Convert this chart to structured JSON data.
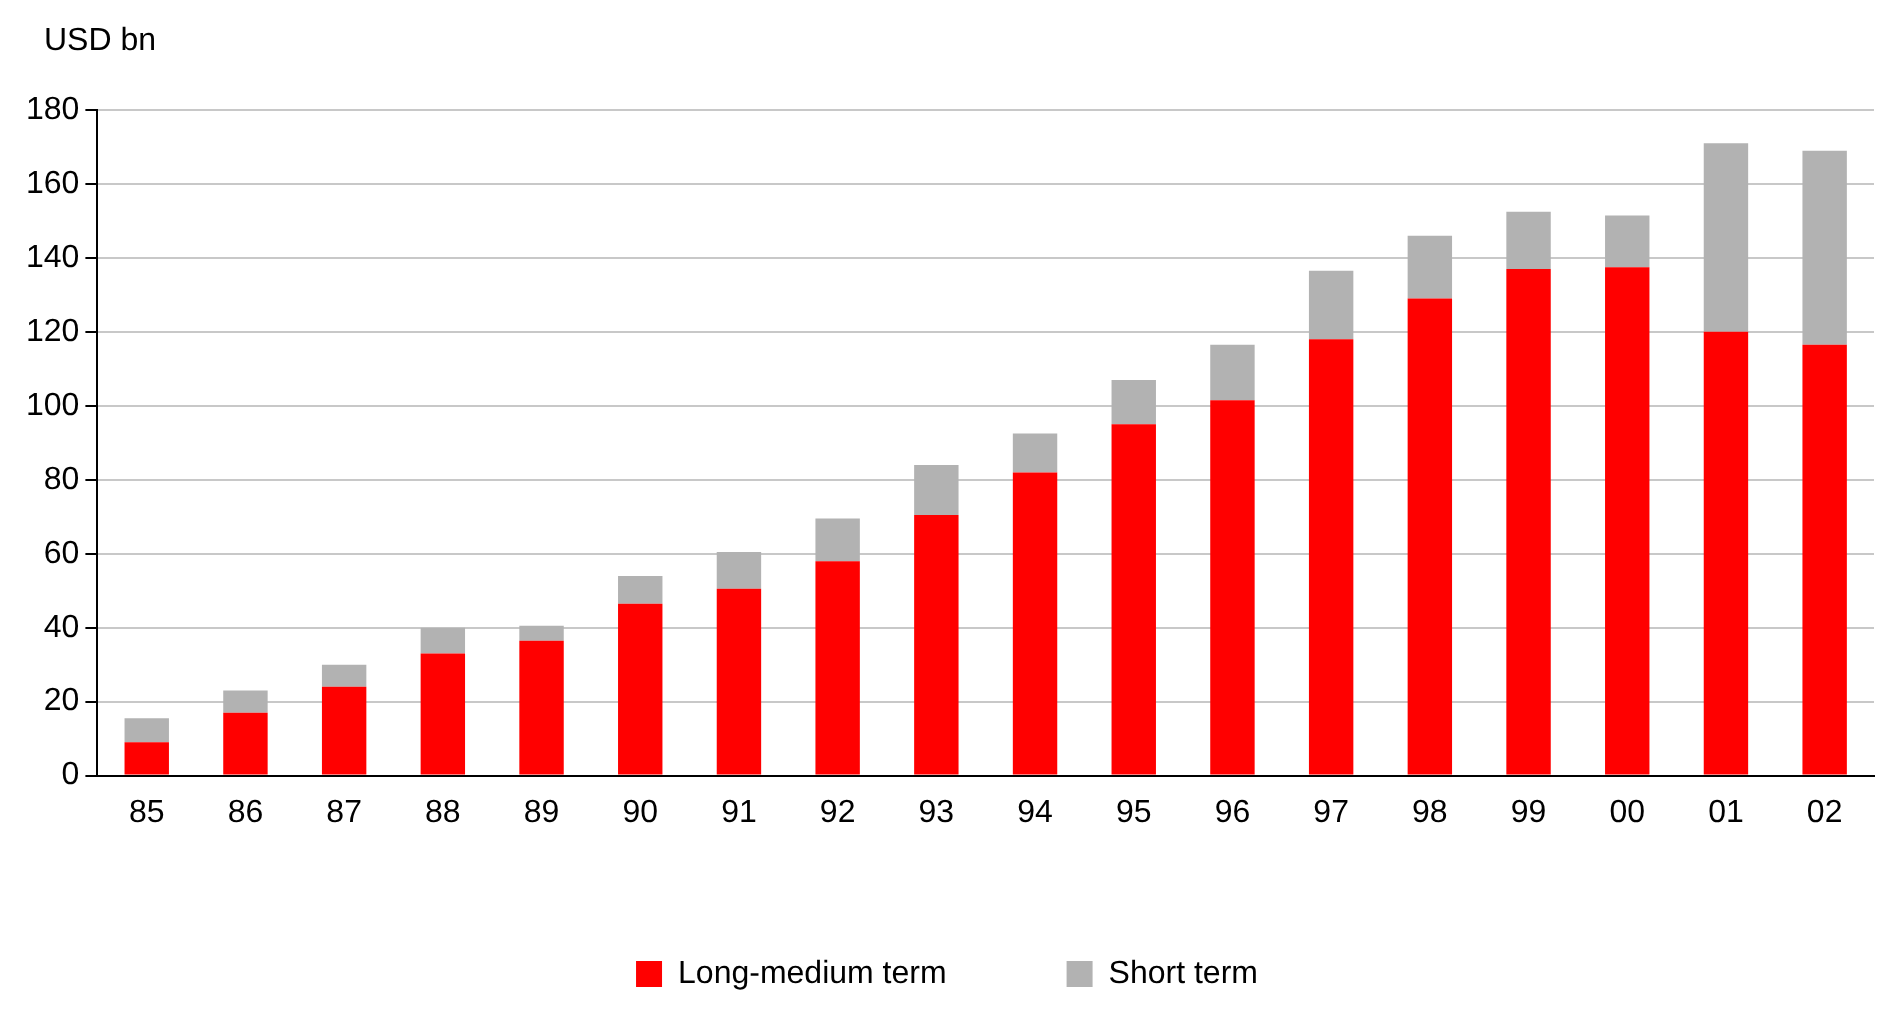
{
  "chart_data": {
    "type": "bar",
    "ylabel": "USD bn",
    "stacked": true,
    "grid": "y",
    "legend": "bottom",
    "categories": [
      "85",
      "86",
      "87",
      "88",
      "89",
      "90",
      "91",
      "92",
      "93",
      "94",
      "95",
      "96",
      "97",
      "98",
      "99",
      "00",
      "01",
      "02"
    ],
    "ylim": [
      0,
      180
    ],
    "yticks": [
      0,
      20,
      40,
      60,
      80,
      100,
      120,
      140,
      160,
      180
    ],
    "series": [
      {
        "name": "Long-medium term",
        "color": "#ff0000",
        "values": [
          9,
          17,
          24,
          33,
          36.5,
          46.5,
          50.5,
          58,
          70.5,
          82,
          95,
          101.5,
          118,
          129,
          137,
          137.5,
          120,
          116.5
        ]
      },
      {
        "name": "Short term",
        "color": "#b2b2b2",
        "values": [
          6.5,
          6,
          6,
          7,
          4,
          7.5,
          10,
          11.5,
          13.5,
          10.5,
          12,
          15,
          18.5,
          17,
          15.5,
          14,
          51,
          52.5
        ]
      }
    ]
  }
}
